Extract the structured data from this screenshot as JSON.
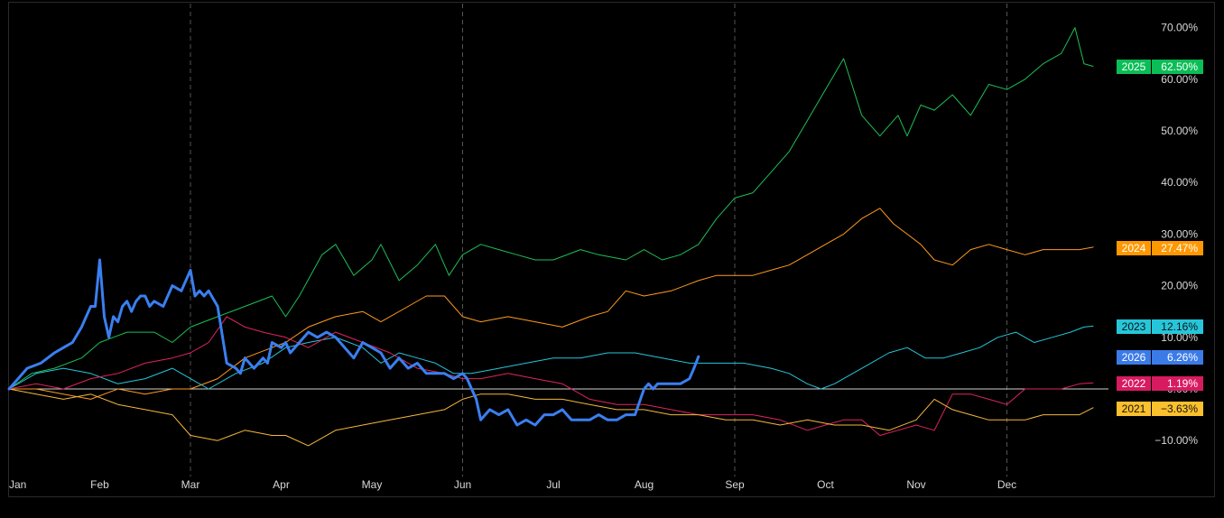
{
  "chart_data": {
    "type": "line",
    "title": "",
    "xlabel": "",
    "ylabel": "",
    "x_ticks": [
      "Jan",
      "Feb",
      "Mar",
      "Apr",
      "May",
      "Jun",
      "Jul",
      "Aug",
      "Sep",
      "Oct",
      "Nov",
      "Dec"
    ],
    "y_ticks": [
      "70.00%",
      "60.00%",
      "50.00%",
      "40.00%",
      "30.00%",
      "20.00%",
      "10.00%",
      "0.00%",
      "−10.00%"
    ],
    "y_unit": "%",
    "ylim": [
      -14,
      72
    ],
    "xlim": [
      0,
      11.95
    ],
    "grid": "vertical dashed at Jan, Mar, Jun, Sep, Dec",
    "legend": "right-edge value labels",
    "baseline": 0,
    "colors": {
      "background": "#000000",
      "axis_text": "#d9d9d9",
      "grid": "#555555",
      "baseline": "#d0d0d0"
    },
    "series": [
      {
        "name": "2025",
        "value_label": "62.50%",
        "color": "#1ebf55",
        "label_color": "#0bbd56",
        "label_text_color": "#ffffff",
        "width": 1,
        "x": [
          0,
          0.25,
          0.5,
          0.8,
          1.0,
          1.3,
          1.6,
          1.8,
          2.0,
          2.3,
          2.6,
          2.9,
          3.05,
          3.2,
          3.45,
          3.6,
          3.8,
          4.0,
          4.1,
          4.3,
          4.5,
          4.7,
          4.85,
          5.0,
          5.2,
          5.4,
          5.6,
          5.8,
          6.0,
          6.3,
          6.5,
          6.8,
          7.0,
          7.2,
          7.4,
          7.6,
          7.8,
          8.0,
          8.2,
          8.4,
          8.6,
          8.8,
          9.0,
          9.2,
          9.4,
          9.6,
          9.8,
          9.9,
          10.05,
          10.2,
          10.4,
          10.6,
          10.8,
          11.0,
          11.2,
          11.4,
          11.6,
          11.75,
          11.85,
          11.95
        ],
        "y": [
          0,
          3,
          4,
          6,
          9,
          11,
          11,
          9,
          12,
          14,
          16,
          18,
          14,
          18,
          26,
          28,
          22,
          25,
          28,
          21,
          24,
          28,
          22,
          26,
          28,
          27,
          26,
          25,
          25,
          27,
          26,
          25,
          27,
          25,
          26,
          28,
          33,
          37,
          38,
          42,
          46,
          52,
          58,
          64,
          53,
          49,
          53,
          49,
          55,
          54,
          57,
          53,
          59,
          58,
          60,
          63,
          65,
          70,
          63,
          62.5
        ]
      },
      {
        "name": "2024",
        "value_label": "27.47%",
        "color": "#ff9a1f",
        "label_color": "#ff9800",
        "label_text_color": "#ffffff",
        "width": 1,
        "x": [
          0,
          0.3,
          0.6,
          0.9,
          1.2,
          1.5,
          1.8,
          2.0,
          2.3,
          2.6,
          2.9,
          3.05,
          3.3,
          3.6,
          3.9,
          4.1,
          4.4,
          4.6,
          4.8,
          5.0,
          5.2,
          5.5,
          5.8,
          6.1,
          6.4,
          6.6,
          6.8,
          7.0,
          7.3,
          7.6,
          7.8,
          8.0,
          8.2,
          8.4,
          8.6,
          8.8,
          9.0,
          9.2,
          9.4,
          9.6,
          9.75,
          9.9,
          10.05,
          10.2,
          10.4,
          10.6,
          10.8,
          11.0,
          11.2,
          11.4,
          11.6,
          11.8,
          11.95
        ],
        "y": [
          0,
          0,
          -1,
          -2,
          0,
          -1,
          0,
          0,
          2,
          6,
          8,
          9,
          12,
          14,
          15,
          13,
          16,
          18,
          18,
          14,
          13,
          14,
          13,
          12,
          14,
          15,
          19,
          18,
          19,
          21,
          22,
          22,
          22,
          23,
          24,
          26,
          28,
          30,
          33,
          35,
          32,
          30,
          28,
          25,
          24,
          27,
          28,
          27,
          26,
          27,
          27,
          27,
          27.47
        ]
      },
      {
        "name": "2023",
        "value_label": "12.16%",
        "color": "#26c6da",
        "label_color": "#26c6da",
        "label_text_color": "#111111",
        "width": 1,
        "x": [
          0,
          0.3,
          0.6,
          0.9,
          1.2,
          1.5,
          1.8,
          2.0,
          2.2,
          2.5,
          2.8,
          3.05,
          3.3,
          3.6,
          3.9,
          4.1,
          4.3,
          4.5,
          4.7,
          4.9,
          5.1,
          5.4,
          5.7,
          6.0,
          6.3,
          6.6,
          6.9,
          7.2,
          7.5,
          7.8,
          8.1,
          8.4,
          8.6,
          8.8,
          8.95,
          9.1,
          9.3,
          9.5,
          9.7,
          9.9,
          10.1,
          10.3,
          10.5,
          10.7,
          10.9,
          11.1,
          11.3,
          11.5,
          11.7,
          11.85,
          11.95
        ],
        "y": [
          0,
          3,
          4,
          3,
          1,
          2,
          4,
          2,
          0,
          3,
          5,
          8,
          9,
          10,
          8,
          5,
          7,
          6,
          5,
          3,
          3,
          4,
          5,
          6,
          6,
          7,
          7,
          6,
          5,
          5,
          5,
          4,
          3,
          1,
          0,
          1,
          3,
          5,
          7,
          8,
          6,
          6,
          7,
          8,
          10,
          11,
          9,
          10,
          11,
          12,
          12.16
        ]
      },
      {
        "name": "2022",
        "value_label": "1.19%",
        "color": "#e0245e",
        "label_color": "#d81b60",
        "label_text_color": "#ffffff",
        "width": 1,
        "x": [
          0,
          0.3,
          0.6,
          0.9,
          1.2,
          1.5,
          1.8,
          2.0,
          2.2,
          2.4,
          2.6,
          2.8,
          3.05,
          3.3,
          3.6,
          3.9,
          4.2,
          4.5,
          4.8,
          5.0,
          5.2,
          5.5,
          5.8,
          6.1,
          6.4,
          6.7,
          7.0,
          7.3,
          7.6,
          7.9,
          8.2,
          8.5,
          8.8,
          9.0,
          9.2,
          9.4,
          9.6,
          9.8,
          10.0,
          10.2,
          10.4,
          10.6,
          10.8,
          11.0,
          11.2,
          11.4,
          11.6,
          11.8,
          11.95
        ],
        "y": [
          0,
          1,
          0,
          2,
          3,
          5,
          6,
          7,
          9,
          14,
          12,
          11,
          10,
          8,
          11,
          9,
          7,
          4,
          3,
          2,
          2,
          3,
          2,
          1,
          -2,
          -3,
          -3,
          -4,
          -5,
          -5,
          -5,
          -6,
          -8,
          -7,
          -6,
          -6,
          -9,
          -8,
          -7,
          -8,
          -1,
          -1,
          -2,
          -3,
          0,
          0,
          0,
          1,
          1.19
        ]
      },
      {
        "name": "2021",
        "value_label": "−3.63%",
        "color": "#f5b83d",
        "label_color": "#fbc02d",
        "label_text_color": "#111111",
        "width": 1,
        "x": [
          0,
          0.3,
          0.6,
          0.9,
          1.2,
          1.5,
          1.8,
          2.0,
          2.3,
          2.6,
          2.9,
          3.05,
          3.3,
          3.6,
          3.9,
          4.2,
          4.5,
          4.8,
          5.0,
          5.2,
          5.5,
          5.8,
          6.1,
          6.4,
          6.7,
          7.0,
          7.3,
          7.6,
          7.9,
          8.2,
          8.5,
          8.8,
          9.1,
          9.4,
          9.7,
          10.0,
          10.2,
          10.4,
          10.6,
          10.8,
          11.0,
          11.2,
          11.4,
          11.6,
          11.8,
          11.95
        ],
        "y": [
          0,
          -1,
          -2,
          -1,
          -3,
          -4,
          -5,
          -9,
          -10,
          -8,
          -9,
          -9,
          -11,
          -8,
          -7,
          -6,
          -5,
          -4,
          -2,
          -1,
          -1,
          -2,
          -2,
          -3,
          -4,
          -4,
          -5,
          -5,
          -6,
          -6,
          -7,
          -6,
          -7,
          -7,
          -8,
          -6,
          -2,
          -4,
          -5,
          -6,
          -6,
          -6,
          -5,
          -5,
          -5,
          -3.63
        ]
      },
      {
        "name": "2026",
        "value_label": "6.26%",
        "color": "#3a7ff0",
        "label_color": "#3b7be8",
        "label_text_color": "#ffffff",
        "width": 3,
        "x": [
          0,
          0.1,
          0.2,
          0.35,
          0.5,
          0.6,
          0.7,
          0.8,
          0.9,
          0.95,
          1.0,
          1.05,
          1.1,
          1.15,
          1.2,
          1.25,
          1.3,
          1.35,
          1.4,
          1.45,
          1.5,
          1.55,
          1.6,
          1.7,
          1.8,
          1.9,
          2.0,
          2.05,
          2.1,
          2.15,
          2.2,
          2.3,
          2.4,
          2.5,
          2.55,
          2.6,
          2.7,
          2.8,
          2.85,
          2.9,
          3.0,
          3.05,
          3.1,
          3.2,
          3.3,
          3.4,
          3.5,
          3.6,
          3.7,
          3.8,
          3.9,
          4.0,
          4.1,
          4.2,
          4.3,
          4.4,
          4.5,
          4.6,
          4.7,
          4.8,
          4.9,
          5.0,
          5.05,
          5.1,
          5.15,
          5.2,
          5.3,
          5.4,
          5.5,
          5.6,
          5.7,
          5.8,
          5.9,
          6.0,
          6.1,
          6.2,
          6.3,
          6.4,
          6.5,
          6.6,
          6.7,
          6.8,
          6.9,
          7.0,
          7.05,
          7.1,
          7.15,
          7.2,
          7.3,
          7.4,
          7.5,
          7.55,
          7.6
        ],
        "y": [
          0,
          2,
          4,
          5,
          7,
          8,
          9,
          12,
          16,
          16,
          25,
          14,
          10,
          14,
          13,
          16,
          17,
          15,
          17,
          18,
          18,
          16,
          17,
          16,
          20,
          19,
          23,
          18,
          19,
          18,
          19,
          16,
          5,
          4,
          3,
          6,
          4,
          6,
          5,
          9,
          8,
          9,
          7,
          9,
          11,
          10,
          11,
          10,
          8,
          6,
          9,
          8,
          7,
          4,
          6,
          4,
          5,
          3,
          3,
          3,
          2,
          3,
          2,
          0,
          -2,
          -6,
          -4,
          -5,
          -4,
          -7,
          -6,
          -7,
          -5,
          -5,
          -4,
          -6,
          -6,
          -6,
          -5,
          -6,
          -6,
          -5,
          -5,
          0,
          1,
          0,
          1,
          1,
          1,
          1,
          2,
          4,
          6.26
        ]
      }
    ]
  }
}
